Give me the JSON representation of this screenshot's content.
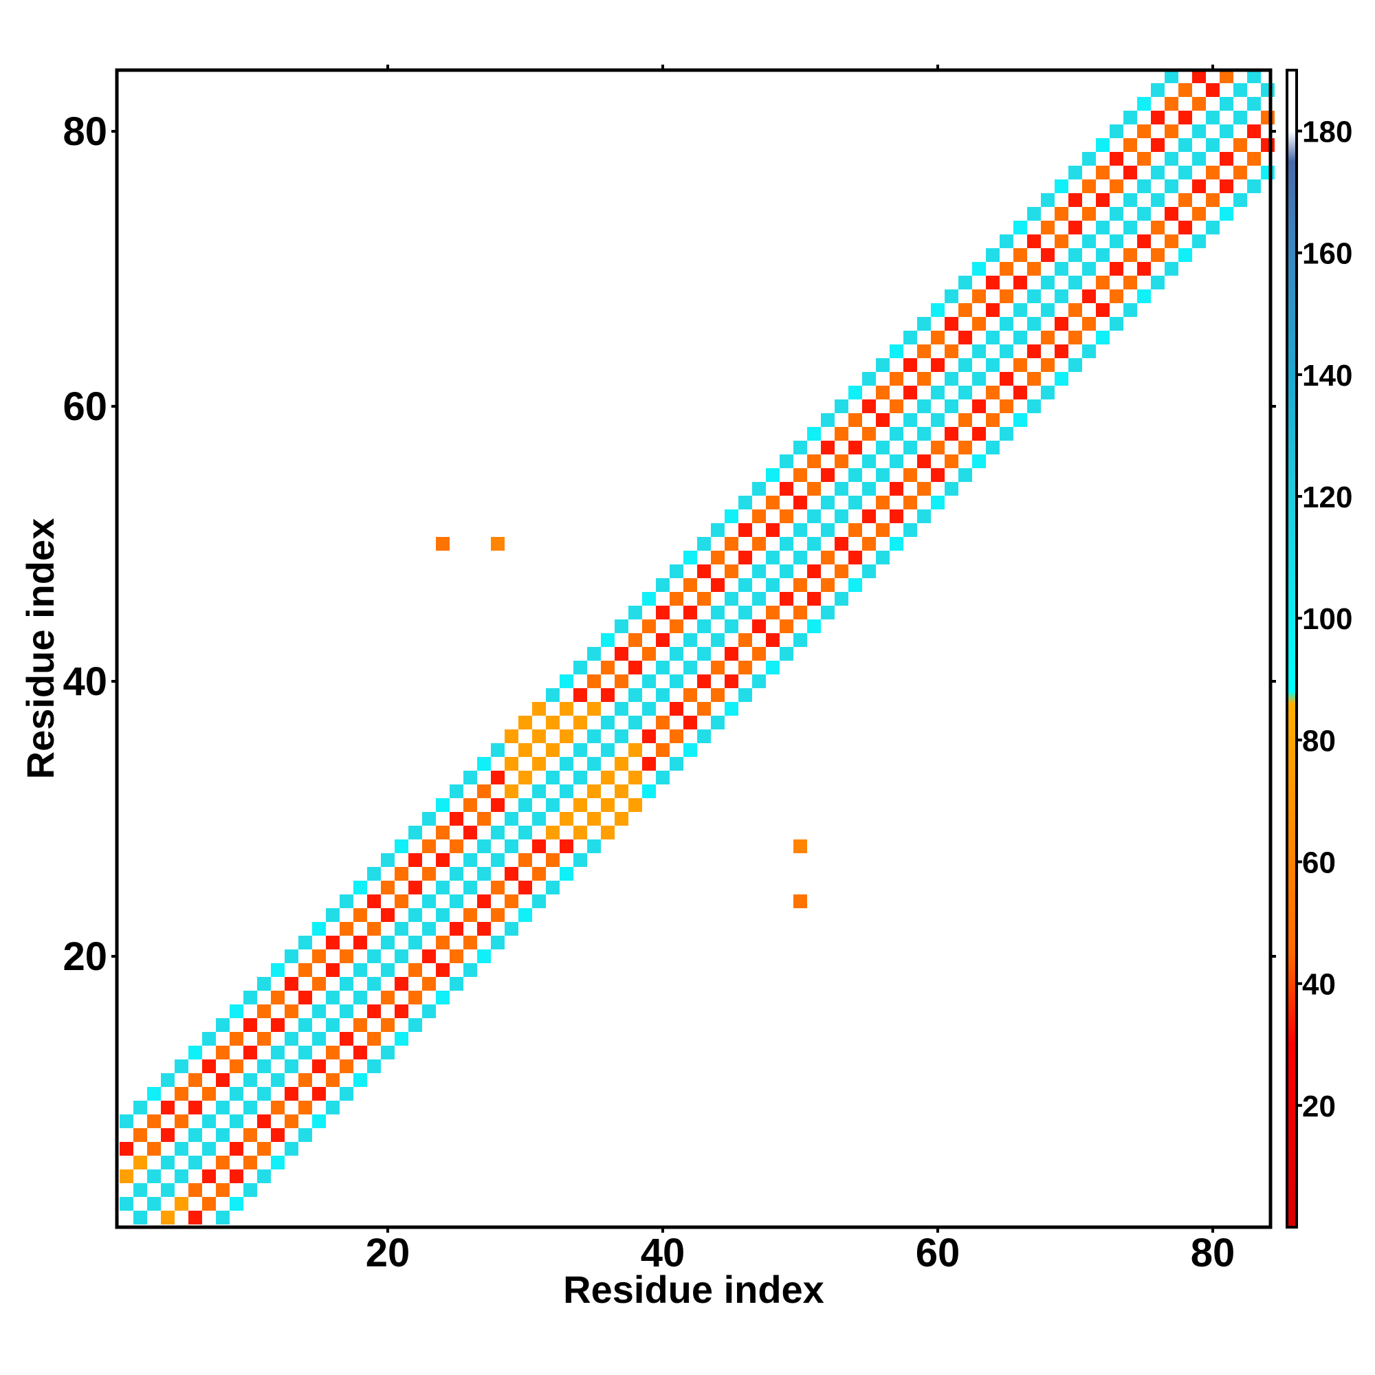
{
  "chart_data": {
    "type": "heatmap",
    "title": "",
    "xlabel": "Residue index",
    "ylabel": "Residue index",
    "xlim": [
      1,
      84
    ],
    "ylim": [
      1,
      84
    ],
    "xticks": [
      20,
      40,
      60,
      80
    ],
    "yticks": [
      20,
      40,
      60,
      80
    ],
    "colorbar": {
      "range": [
        0,
        190
      ],
      "ticks": [
        20,
        40,
        60,
        80,
        100,
        120,
        140,
        160,
        180
      ],
      "stops": [
        {
          "value": 0,
          "color": "#d70000"
        },
        {
          "value": 30,
          "color": "#ff0000"
        },
        {
          "value": 45,
          "color": "#ff6a00"
        },
        {
          "value": 65,
          "color": "#ff8c00"
        },
        {
          "value": 86,
          "color": "#ffb000"
        },
        {
          "value": 88,
          "color": "#00ffff"
        },
        {
          "value": 120,
          "color": "#22ccdd"
        },
        {
          "value": 140,
          "color": "#1ea8d0"
        },
        {
          "value": 160,
          "color": "#3a88c0"
        },
        {
          "value": 175,
          "color": "#4a6aa8"
        },
        {
          "value": 180,
          "color": "#ffffff"
        },
        {
          "value": 190,
          "color": "#ffffff"
        }
      ]
    },
    "band_colors": {
      "red": "#ff1a00",
      "orange": "#ff7000",
      "amber": "#ffa000",
      "cyan": "#22dde8",
      "cyan_light": "#10f0f8"
    },
    "band_width": 8,
    "off_diagonal_points": [
      {
        "x": 24,
        "y": 50,
        "value": 50
      },
      {
        "x": 28,
        "y": 50,
        "value": 60
      },
      {
        "x": 50,
        "y": 28,
        "value": 60
      },
      {
        "x": 50,
        "y": 24,
        "value": 50
      }
    ]
  }
}
